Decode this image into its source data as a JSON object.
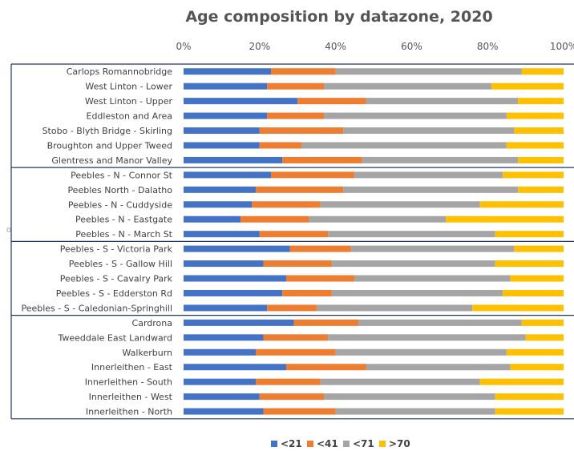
{
  "chart_data": {
    "type": "bar",
    "orientation": "horizontal",
    "stacked": "percent",
    "title": "Age composition by datazone, 2020",
    "xlim": [
      0,
      100
    ],
    "x_ticks": [
      "0%",
      "20%",
      "40%",
      "60%",
      "80%",
      "100%"
    ],
    "grid": false,
    "legend_position": "bottom",
    "categories": [
      "Carlops Romannobridge",
      "West Linton - Lower",
      "West Linton - Upper",
      "Eddleston and Area",
      "Stobo - Blyth Bridge - Skirling",
      "Broughton and Upper Tweed",
      "Glentress and Manor Valley",
      "Peebles - N - Connor St",
      "Peebles North - Dalatho",
      "Peebles - N - Cuddyside",
      "Peebles - N - Eastgate",
      "Peebles - N - March St",
      "Peebles - S - Victoria Park",
      "Peebles - S - Gallow Hill",
      "Peebles - S - Cavalry Park",
      "Peebles - S - Edderston Rd",
      "Peebles - S - Caledonian-Springhill",
      "Cardrona",
      "Tweeddale East Landward",
      "Walkerburn",
      "Innerleithen - East",
      "Innerleithen - South",
      "Innerleithen - West",
      "Innerleithen - North"
    ],
    "groups": [
      7,
      5,
      5,
      7
    ],
    "series": [
      {
        "name": "<21",
        "color": "#4472C4",
        "values": [
          23,
          22,
          30,
          22,
          20,
          20,
          26,
          23,
          19,
          18,
          15,
          20,
          28,
          21,
          27,
          26,
          22,
          29,
          21,
          19,
          27,
          19,
          20,
          21
        ]
      },
      {
        "name": "<41",
        "color": "#ED7D31",
        "values": [
          17,
          15,
          18,
          15,
          22,
          11,
          21,
          22,
          23,
          18,
          18,
          18,
          16,
          18,
          18,
          13,
          13,
          17,
          17,
          21,
          21,
          17,
          17,
          19
        ]
      },
      {
        "name": "<71",
        "color": "#A5A5A5",
        "values": [
          49,
          44,
          40,
          48,
          45,
          54,
          41,
          39,
          46,
          42,
          36,
          44,
          43,
          43,
          41,
          45,
          41,
          43,
          52,
          45,
          38,
          42,
          45,
          42
        ]
      },
      {
        "name": ">70",
        "color": "#FFC000",
        "values": [
          11,
          19,
          12,
          15,
          13,
          15,
          12,
          16,
          12,
          22,
          31,
          18,
          13,
          18,
          14,
          16,
          24,
          11,
          10,
          15,
          14,
          22,
          18,
          18
        ]
      }
    ]
  }
}
